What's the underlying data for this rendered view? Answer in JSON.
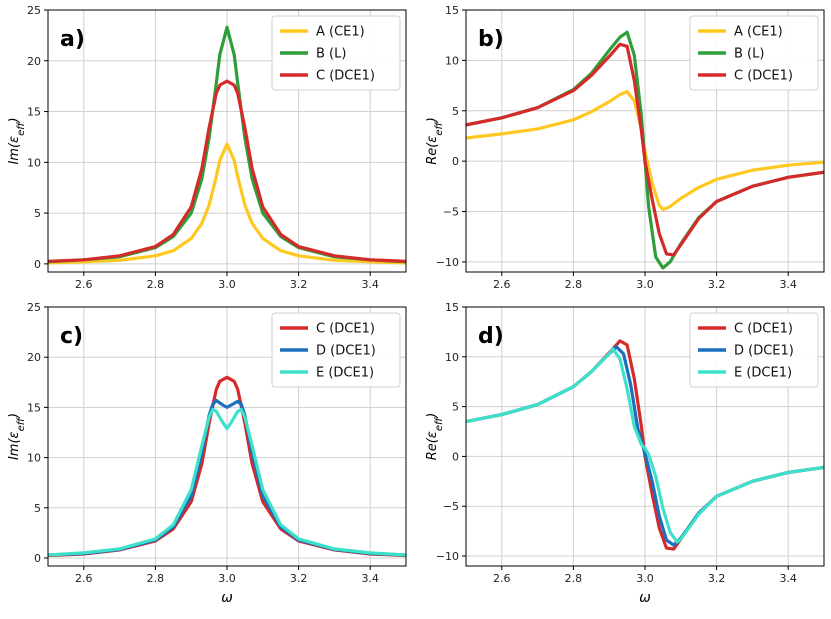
{
  "colors": {
    "A": "#FFC820",
    "B": "#2E9E3A",
    "C": "#D42A2A",
    "D": "#1B6FC0",
    "E": "#3DE0C8"
  },
  "chart_data": [
    {
      "type": "line",
      "panel_label": "a)",
      "ylabel": "Im(εeff)",
      "xlabel": "",
      "xlim": [
        2.5,
        3.5
      ],
      "ylim": [
        -0.8,
        25
      ],
      "xticks": [
        2.6,
        2.8,
        3.0,
        3.2,
        3.4
      ],
      "xtick_labels": [
        "2.6",
        "2.8",
        "3.0",
        "3.2",
        "3.4"
      ],
      "yticks": [
        0,
        5,
        10,
        15,
        20,
        25
      ],
      "ytick_labels": [
        "0",
        "5",
        "10",
        "15",
        "20",
        "25"
      ],
      "grid": true,
      "legend_position": "top-right",
      "series": [
        {
          "key": "A",
          "name": "A (CE1)",
          "x": [
            2.5,
            2.6,
            2.7,
            2.8,
            2.85,
            2.9,
            2.93,
            2.95,
            2.97,
            2.98,
            3.0,
            3.02,
            3.03,
            3.05,
            3.07,
            3.1,
            3.15,
            3.2,
            3.3,
            3.4,
            3.5
          ],
          "y": [
            0.1,
            0.2,
            0.35,
            0.8,
            1.3,
            2.5,
            4.0,
            5.8,
            8.6,
            10.2,
            11.8,
            10.2,
            8.6,
            5.8,
            4.0,
            2.5,
            1.3,
            0.8,
            0.35,
            0.2,
            0.1
          ]
        },
        {
          "key": "B",
          "name": "B (L)",
          "x": [
            2.5,
            2.6,
            2.7,
            2.8,
            2.85,
            2.9,
            2.93,
            2.95,
            2.97,
            2.98,
            3.0,
            3.02,
            3.03,
            3.05,
            3.07,
            3.1,
            3.15,
            3.2,
            3.3,
            3.4,
            3.5
          ],
          "y": [
            0.2,
            0.4,
            0.7,
            1.6,
            2.7,
            5.0,
            8.4,
            12.4,
            17.8,
            20.6,
            23.3,
            20.6,
            17.8,
            12.4,
            8.4,
            5.0,
            2.7,
            1.6,
            0.7,
            0.4,
            0.2
          ]
        },
        {
          "key": "C",
          "name": "C (DCE1)",
          "x": [
            2.5,
            2.6,
            2.7,
            2.8,
            2.85,
            2.9,
            2.93,
            2.95,
            2.97,
            2.98,
            3.0,
            3.02,
            3.03,
            3.05,
            3.07,
            3.1,
            3.15,
            3.2,
            3.3,
            3.4,
            3.5
          ],
          "y": [
            0.25,
            0.4,
            0.8,
            1.7,
            2.9,
            5.6,
            9.4,
            13.4,
            16.8,
            17.6,
            18.0,
            17.6,
            16.8,
            13.4,
            9.4,
            5.6,
            2.9,
            1.7,
            0.8,
            0.4,
            0.25
          ]
        }
      ]
    },
    {
      "type": "line",
      "panel_label": "b)",
      "ylabel": "Re(εeff)",
      "xlabel": "",
      "xlim": [
        2.5,
        3.5
      ],
      "ylim": [
        -11,
        15
      ],
      "xticks": [
        2.6,
        2.8,
        3.0,
        3.2,
        3.4
      ],
      "xtick_labels": [
        "2.6",
        "2.8",
        "3.0",
        "3.2",
        "3.4"
      ],
      "yticks": [
        -10,
        -5,
        0,
        5,
        10,
        15
      ],
      "ytick_labels": [
        "−10",
        "−5",
        "0",
        "5",
        "10",
        "15"
      ],
      "grid": true,
      "legend_position": "top-right",
      "series": [
        {
          "key": "A",
          "name": "A (CE1)",
          "x": [
            2.5,
            2.6,
            2.7,
            2.8,
            2.85,
            2.9,
            2.93,
            2.95,
            2.97,
            2.99,
            3.0,
            3.02,
            3.04,
            3.05,
            3.07,
            3.1,
            3.15,
            3.2,
            3.3,
            3.4,
            3.5
          ],
          "y": [
            2.3,
            2.7,
            3.2,
            4.1,
            4.9,
            5.9,
            6.6,
            6.9,
            6.0,
            3.2,
            1.0,
            -2.2,
            -4.4,
            -4.8,
            -4.5,
            -3.7,
            -2.6,
            -1.8,
            -0.9,
            -0.4,
            -0.1
          ]
        },
        {
          "key": "B",
          "name": "B (L)",
          "x": [
            2.5,
            2.6,
            2.7,
            2.8,
            2.85,
            2.9,
            2.93,
            2.95,
            2.97,
            2.99,
            3.0,
            3.01,
            3.03,
            3.05,
            3.07,
            3.1,
            3.15,
            3.2,
            3.3,
            3.4,
            3.5
          ],
          "y": [
            3.6,
            4.3,
            5.3,
            7.1,
            8.7,
            11.0,
            12.3,
            12.8,
            10.5,
            4.5,
            0.0,
            -4.5,
            -9.5,
            -10.6,
            -10.0,
            -8.2,
            -5.6,
            -4.0,
            -2.5,
            -1.6,
            -1.1
          ]
        },
        {
          "key": "C",
          "name": "C (DCE1)",
          "x": [
            2.5,
            2.6,
            2.7,
            2.8,
            2.85,
            2.9,
            2.93,
            2.95,
            2.97,
            2.99,
            3.0,
            3.02,
            3.04,
            3.06,
            3.08,
            3.1,
            3.15,
            3.2,
            3.3,
            3.4,
            3.5
          ],
          "y": [
            3.6,
            4.3,
            5.3,
            7.0,
            8.5,
            10.4,
            11.6,
            11.4,
            8.0,
            3.0,
            0.0,
            -3.8,
            -7.2,
            -9.2,
            -9.3,
            -8.3,
            -5.7,
            -4.0,
            -2.5,
            -1.6,
            -1.1
          ]
        }
      ]
    },
    {
      "type": "line",
      "panel_label": "c)",
      "ylabel": "Im(εeff)",
      "xlabel": "ω",
      "xlim": [
        2.5,
        3.5
      ],
      "ylim": [
        -0.8,
        25
      ],
      "xticks": [
        2.6,
        2.8,
        3.0,
        3.2,
        3.4
      ],
      "xtick_labels": [
        "2.6",
        "2.8",
        "3.0",
        "3.2",
        "3.4"
      ],
      "yticks": [
        0,
        5,
        10,
        15,
        20,
        25
      ],
      "ytick_labels": [
        "0",
        "5",
        "10",
        "15",
        "20",
        "25"
      ],
      "grid": true,
      "legend_position": "top-right",
      "series": [
        {
          "key": "C",
          "name": "C (DCE1)",
          "x": [
            2.5,
            2.6,
            2.7,
            2.8,
            2.85,
            2.9,
            2.93,
            2.95,
            2.97,
            2.98,
            3.0,
            3.02,
            3.03,
            3.05,
            3.07,
            3.1,
            3.15,
            3.2,
            3.3,
            3.4,
            3.5
          ],
          "y": [
            0.25,
            0.4,
            0.8,
            1.7,
            2.9,
            5.6,
            9.4,
            13.4,
            16.8,
            17.6,
            18.0,
            17.6,
            16.8,
            13.4,
            9.4,
            5.6,
            2.9,
            1.7,
            0.8,
            0.4,
            0.25
          ]
        },
        {
          "key": "D",
          "name": "D (DCE1)",
          "x": [
            2.5,
            2.6,
            2.7,
            2.8,
            2.85,
            2.9,
            2.93,
            2.95,
            2.96,
            2.97,
            2.99,
            3.0,
            3.01,
            3.03,
            3.04,
            3.05,
            3.07,
            3.1,
            3.15,
            3.2,
            3.3,
            3.4,
            3.5
          ],
          "y": [
            0.3,
            0.45,
            0.85,
            1.8,
            3.1,
            6.2,
            10.5,
            14.2,
            15.3,
            15.7,
            15.2,
            15.0,
            15.2,
            15.6,
            15.3,
            14.2,
            10.5,
            6.2,
            3.1,
            1.8,
            0.85,
            0.45,
            0.3
          ]
        },
        {
          "key": "E",
          "name": "E (DCE1)",
          "x": [
            2.5,
            2.6,
            2.7,
            2.8,
            2.85,
            2.9,
            2.93,
            2.95,
            2.96,
            2.97,
            2.99,
            3.0,
            3.01,
            3.03,
            3.04,
            3.05,
            3.07,
            3.1,
            3.15,
            3.2,
            3.3,
            3.4,
            3.5
          ],
          "y": [
            0.3,
            0.5,
            0.9,
            1.9,
            3.3,
            6.8,
            11.2,
            14.0,
            14.8,
            14.6,
            13.4,
            12.9,
            13.4,
            14.6,
            14.8,
            14.0,
            11.2,
            6.8,
            3.3,
            1.9,
            0.9,
            0.5,
            0.3
          ]
        }
      ]
    },
    {
      "type": "line",
      "panel_label": "d)",
      "ylabel": "Re(εeff)",
      "xlabel": "ω",
      "xlim": [
        2.5,
        3.5
      ],
      "ylim": [
        -11,
        15
      ],
      "xticks": [
        2.6,
        2.8,
        3.0,
        3.2,
        3.4
      ],
      "xtick_labels": [
        "2.6",
        "2.8",
        "3.0",
        "3.2",
        "3.4"
      ],
      "yticks": [
        -10,
        -5,
        0,
        5,
        10,
        15
      ],
      "ytick_labels": [
        "−10",
        "−5",
        "0",
        "5",
        "10",
        "15"
      ],
      "grid": true,
      "legend_position": "top-right",
      "series": [
        {
          "key": "C",
          "name": "C (DCE1)",
          "x": [
            2.5,
            2.6,
            2.7,
            2.8,
            2.85,
            2.9,
            2.93,
            2.95,
            2.97,
            2.99,
            3.0,
            3.02,
            3.04,
            3.06,
            3.08,
            3.1,
            3.15,
            3.2,
            3.3,
            3.4,
            3.5
          ],
          "y": [
            3.5,
            4.2,
            5.2,
            7.0,
            8.5,
            10.4,
            11.6,
            11.2,
            7.8,
            3.0,
            0.0,
            -3.8,
            -7.2,
            -9.2,
            -9.3,
            -8.3,
            -5.7,
            -4.0,
            -2.5,
            -1.6,
            -1.1
          ]
        },
        {
          "key": "D",
          "name": "D (DCE1)",
          "x": [
            2.5,
            2.6,
            2.7,
            2.8,
            2.85,
            2.9,
            2.92,
            2.94,
            2.96,
            2.98,
            3.0,
            3.02,
            3.04,
            3.06,
            3.08,
            3.1,
            3.15,
            3.2,
            3.3,
            3.4,
            3.5
          ],
          "y": [
            3.5,
            4.2,
            5.2,
            7.0,
            8.5,
            10.3,
            11.0,
            10.3,
            7.2,
            2.8,
            0.3,
            -2.5,
            -6.0,
            -8.4,
            -8.9,
            -8.2,
            -5.7,
            -4.0,
            -2.5,
            -1.6,
            -1.1
          ]
        },
        {
          "key": "E",
          "name": "E (DCE1)",
          "x": [
            2.5,
            2.6,
            2.7,
            2.8,
            2.85,
            2.9,
            2.91,
            2.93,
            2.95,
            2.97,
            2.99,
            3.0,
            3.01,
            3.03,
            3.05,
            3.07,
            3.09,
            3.1,
            3.15,
            3.2,
            3.3,
            3.4,
            3.5
          ],
          "y": [
            3.5,
            4.2,
            5.2,
            7.0,
            8.5,
            10.3,
            10.8,
            9.8,
            6.8,
            3.0,
            1.2,
            0.8,
            0.2,
            -2.0,
            -5.2,
            -7.6,
            -8.6,
            -8.3,
            -5.8,
            -4.0,
            -2.5,
            -1.6,
            -1.1
          ]
        }
      ]
    }
  ]
}
